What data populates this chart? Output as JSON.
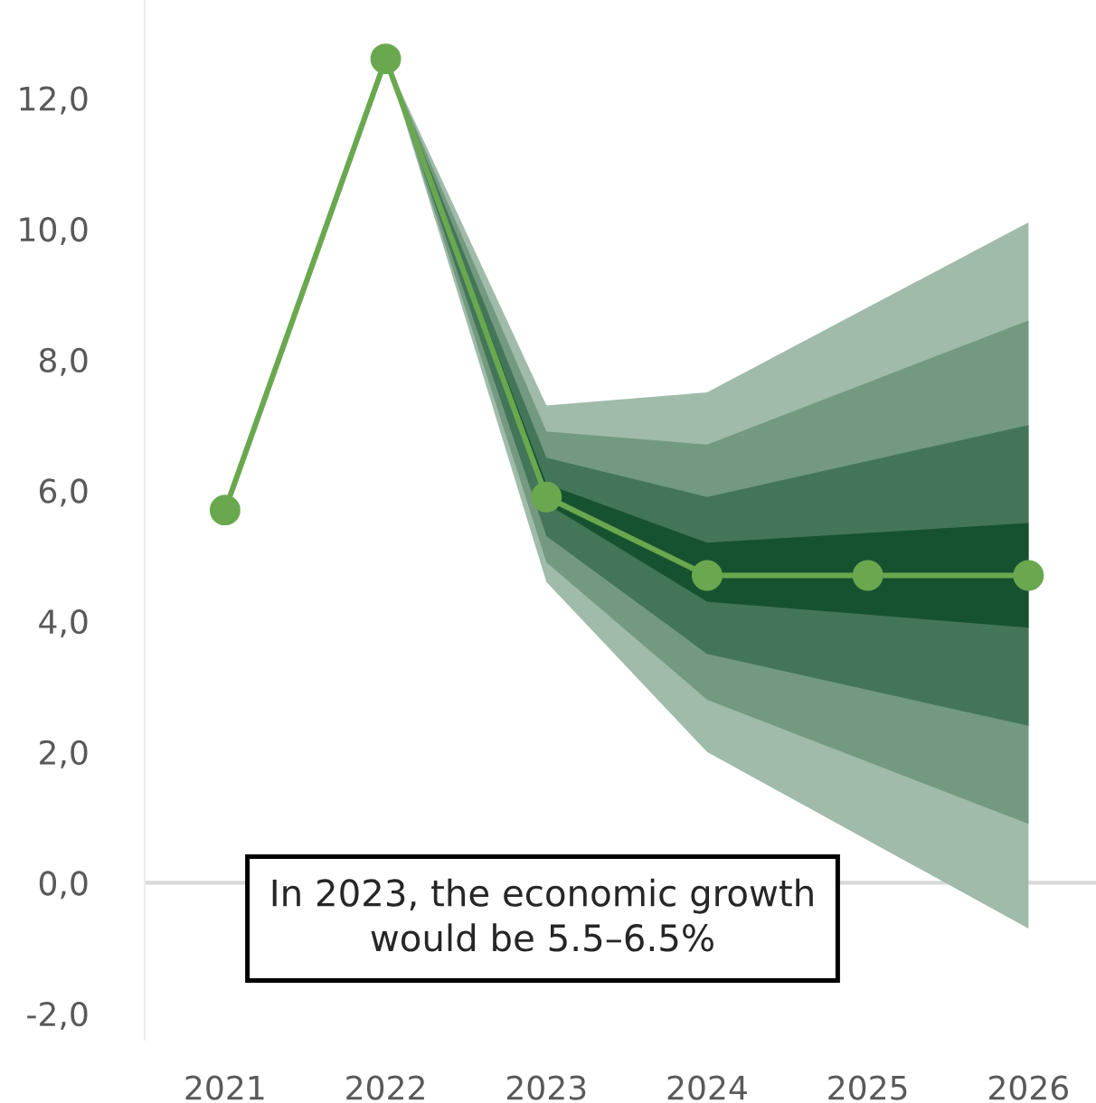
{
  "chart_data": {
    "type": "line",
    "x": [
      2021,
      2022,
      2023,
      2024,
      2025,
      2026
    ],
    "series": [
      {
        "type": "line",
        "color": "#a0bba9",
        "x": [
          2022,
          2023,
          2024,
          2026
        ],
        "values": [
          null,
          null,
          null,
          null
        ],
        "lower": [
          12.6,
          4.6,
          2.0,
          -0.7
        ],
        "upper": [
          12.6,
          7.3,
          7.5,
          10.1
        ]
      },
      {
        "type": "line",
        "color": "#739a80",
        "x": [
          2022,
          2023,
          2024,
          2026
        ],
        "values": [
          null,
          null,
          null,
          null
        ],
        "lower": [
          12.6,
          4.9,
          2.8,
          0.9
        ],
        "upper": [
          12.6,
          6.9,
          6.7,
          8.6
        ]
      },
      {
        "type": "line",
        "color": "#437558",
        "x": [
          2022,
          2023,
          2024,
          2026
        ],
        "values": [
          null,
          null,
          null,
          null
        ],
        "lower": [
          12.6,
          5.3,
          3.5,
          2.4
        ],
        "upper": [
          12.6,
          6.5,
          5.9,
          7.0
        ]
      },
      {
        "type": "line",
        "color": "#175230",
        "x": [
          2022,
          2023,
          2024,
          2026
        ],
        "values": [
          null,
          null,
          null,
          null
        ],
        "lower": [
          12.6,
          5.8,
          4.3,
          3.9
        ],
        "upper": [
          12.6,
          6.1,
          5.2,
          5.5
        ]
      },
      {
        "color": "#6aa84f",
        "marker": "circle",
        "values": [
          5.7,
          12.6,
          5.9,
          4.7,
          4.7,
          4.7
        ]
      }
    ],
    "xlim": [
      2020.5,
      2026.42
    ],
    "xticks": [
      2021,
      2022,
      2023,
      2024,
      2025,
      2026
    ],
    "ylim": [
      -2.4,
      13.5
    ],
    "yticks": [
      {
        "value": -2,
        "label": "-2,0"
      },
      {
        "value": 0,
        "label": "0,0"
      },
      {
        "value": 2,
        "label": "2,0"
      },
      {
        "value": 4,
        "label": "4,0"
      },
      {
        "value": 6,
        "label": "6,0"
      },
      {
        "value": 8,
        "label": "8,0"
      },
      {
        "value": 10,
        "label": "10,0"
      },
      {
        "value": 12,
        "label": "12,0"
      }
    ],
    "ref_lines": [
      {
        "axis": "y",
        "value": 0,
        "color": "#d9d9d9"
      }
    ],
    "grid": false,
    "legend": false,
    "annotations": [
      "In 2023, the economic growth would be 5.5–6.5%"
    ]
  }
}
